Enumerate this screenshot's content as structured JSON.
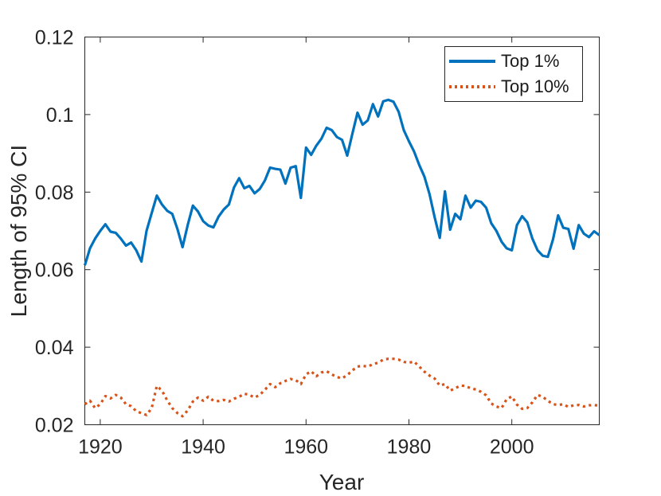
{
  "figure": {
    "background": "#ffffff",
    "axes_color": "#262626"
  },
  "chart_data": {
    "type": "line",
    "title": "",
    "xlabel": "Year",
    "ylabel": "Length of 95% CI",
    "xlim": [
      1917,
      2017
    ],
    "ylim": [
      0.02,
      0.12
    ],
    "xticks": [
      1920,
      1940,
      1960,
      1980,
      2000
    ],
    "xtick_labels": [
      "1920",
      "1940",
      "1960",
      "1980",
      "2000"
    ],
    "yticks": [
      0.02,
      0.04,
      0.06,
      0.08,
      0.1,
      0.12
    ],
    "ytick_labels": [
      "0.02",
      "0.04",
      "0.06",
      "0.08",
      "0.1",
      "0.12"
    ],
    "grid": false,
    "legend_position": "top-right",
    "x": [
      1917,
      1918,
      1919,
      1920,
      1921,
      1922,
      1923,
      1924,
      1925,
      1926,
      1927,
      1928,
      1929,
      1930,
      1931,
      1932,
      1933,
      1934,
      1935,
      1936,
      1937,
      1938,
      1939,
      1940,
      1941,
      1942,
      1943,
      1944,
      1945,
      1946,
      1947,
      1948,
      1949,
      1950,
      1951,
      1952,
      1953,
      1954,
      1955,
      1956,
      1957,
      1958,
      1959,
      1960,
      1961,
      1962,
      1963,
      1964,
      1965,
      1966,
      1967,
      1968,
      1969,
      1970,
      1971,
      1972,
      1973,
      1974,
      1975,
      1976,
      1977,
      1978,
      1979,
      1980,
      1981,
      1982,
      1983,
      1984,
      1985,
      1986,
      1987,
      1988,
      1989,
      1990,
      1991,
      1992,
      1993,
      1994,
      1995,
      1996,
      1997,
      1998,
      1999,
      2000,
      2001,
      2002,
      2003,
      2004,
      2005,
      2006,
      2007,
      2008,
      2009,
      2010,
      2011,
      2012,
      2013,
      2014,
      2015,
      2016,
      2017
    ],
    "series": [
      {
        "name": "Top 1%",
        "color": "#0072BD",
        "style": "solid",
        "values": [
          0.0611,
          0.0655,
          0.068,
          0.07,
          0.0717,
          0.0698,
          0.0695,
          0.068,
          0.0662,
          0.067,
          0.065,
          0.0621,
          0.07,
          0.0746,
          0.0791,
          0.0768,
          0.0752,
          0.0744,
          0.0705,
          0.0658,
          0.0715,
          0.0765,
          0.075,
          0.0725,
          0.0714,
          0.0709,
          0.0737,
          0.0755,
          0.0768,
          0.0812,
          0.0836,
          0.081,
          0.0816,
          0.0797,
          0.0808,
          0.083,
          0.0863,
          0.086,
          0.0858,
          0.0822,
          0.0863,
          0.0867,
          0.0785,
          0.0915,
          0.0896,
          0.092,
          0.0938,
          0.0966,
          0.096,
          0.0942,
          0.0935,
          0.0894,
          0.095,
          0.1005,
          0.0974,
          0.0985,
          0.1027,
          0.0995,
          0.1034,
          0.1038,
          0.1033,
          0.1007,
          0.096,
          0.0931,
          0.0905,
          0.087,
          0.084,
          0.0795,
          0.0735,
          0.0682,
          0.0802,
          0.0703,
          0.0744,
          0.073,
          0.0791,
          0.076,
          0.0778,
          0.0775,
          0.076,
          0.072,
          0.07,
          0.0672,
          0.0655,
          0.065,
          0.0715,
          0.0738,
          0.0722,
          0.068,
          0.065,
          0.0636,
          0.0633,
          0.0678,
          0.074,
          0.0708,
          0.0705,
          0.0654,
          0.0715,
          0.0693,
          0.0684,
          0.0699,
          0.0689
        ]
      },
      {
        "name": "Top 10%",
        "color": "#D95319",
        "style": "dotted",
        "values": [
          0.0253,
          0.0262,
          0.0243,
          0.0253,
          0.0274,
          0.0268,
          0.0277,
          0.027,
          0.0253,
          0.0248,
          0.0235,
          0.023,
          0.0225,
          0.0243,
          0.03,
          0.0288,
          0.0263,
          0.0243,
          0.023,
          0.0222,
          0.0237,
          0.026,
          0.027,
          0.0262,
          0.0272,
          0.0262,
          0.0261,
          0.0264,
          0.026,
          0.0267,
          0.0272,
          0.028,
          0.0277,
          0.027,
          0.0277,
          0.029,
          0.0305,
          0.0297,
          0.0307,
          0.0313,
          0.0318,
          0.0315,
          0.0305,
          0.033,
          0.0338,
          0.0325,
          0.0335,
          0.0338,
          0.033,
          0.0323,
          0.032,
          0.0328,
          0.034,
          0.035,
          0.0352,
          0.035,
          0.0356,
          0.036,
          0.0368,
          0.037,
          0.037,
          0.0368,
          0.0362,
          0.036,
          0.0363,
          0.035,
          0.0337,
          0.0327,
          0.0319,
          0.0301,
          0.0305,
          0.0288,
          0.0294,
          0.0301,
          0.03,
          0.0294,
          0.0291,
          0.0285,
          0.0276,
          0.0255,
          0.0247,
          0.0243,
          0.0266,
          0.0273,
          0.0252,
          0.0241,
          0.0243,
          0.0258,
          0.0277,
          0.0272,
          0.0262,
          0.0253,
          0.0251,
          0.0253,
          0.0246,
          0.025,
          0.0251,
          0.0247,
          0.025,
          0.0251,
          0.0249
        ]
      }
    ]
  }
}
